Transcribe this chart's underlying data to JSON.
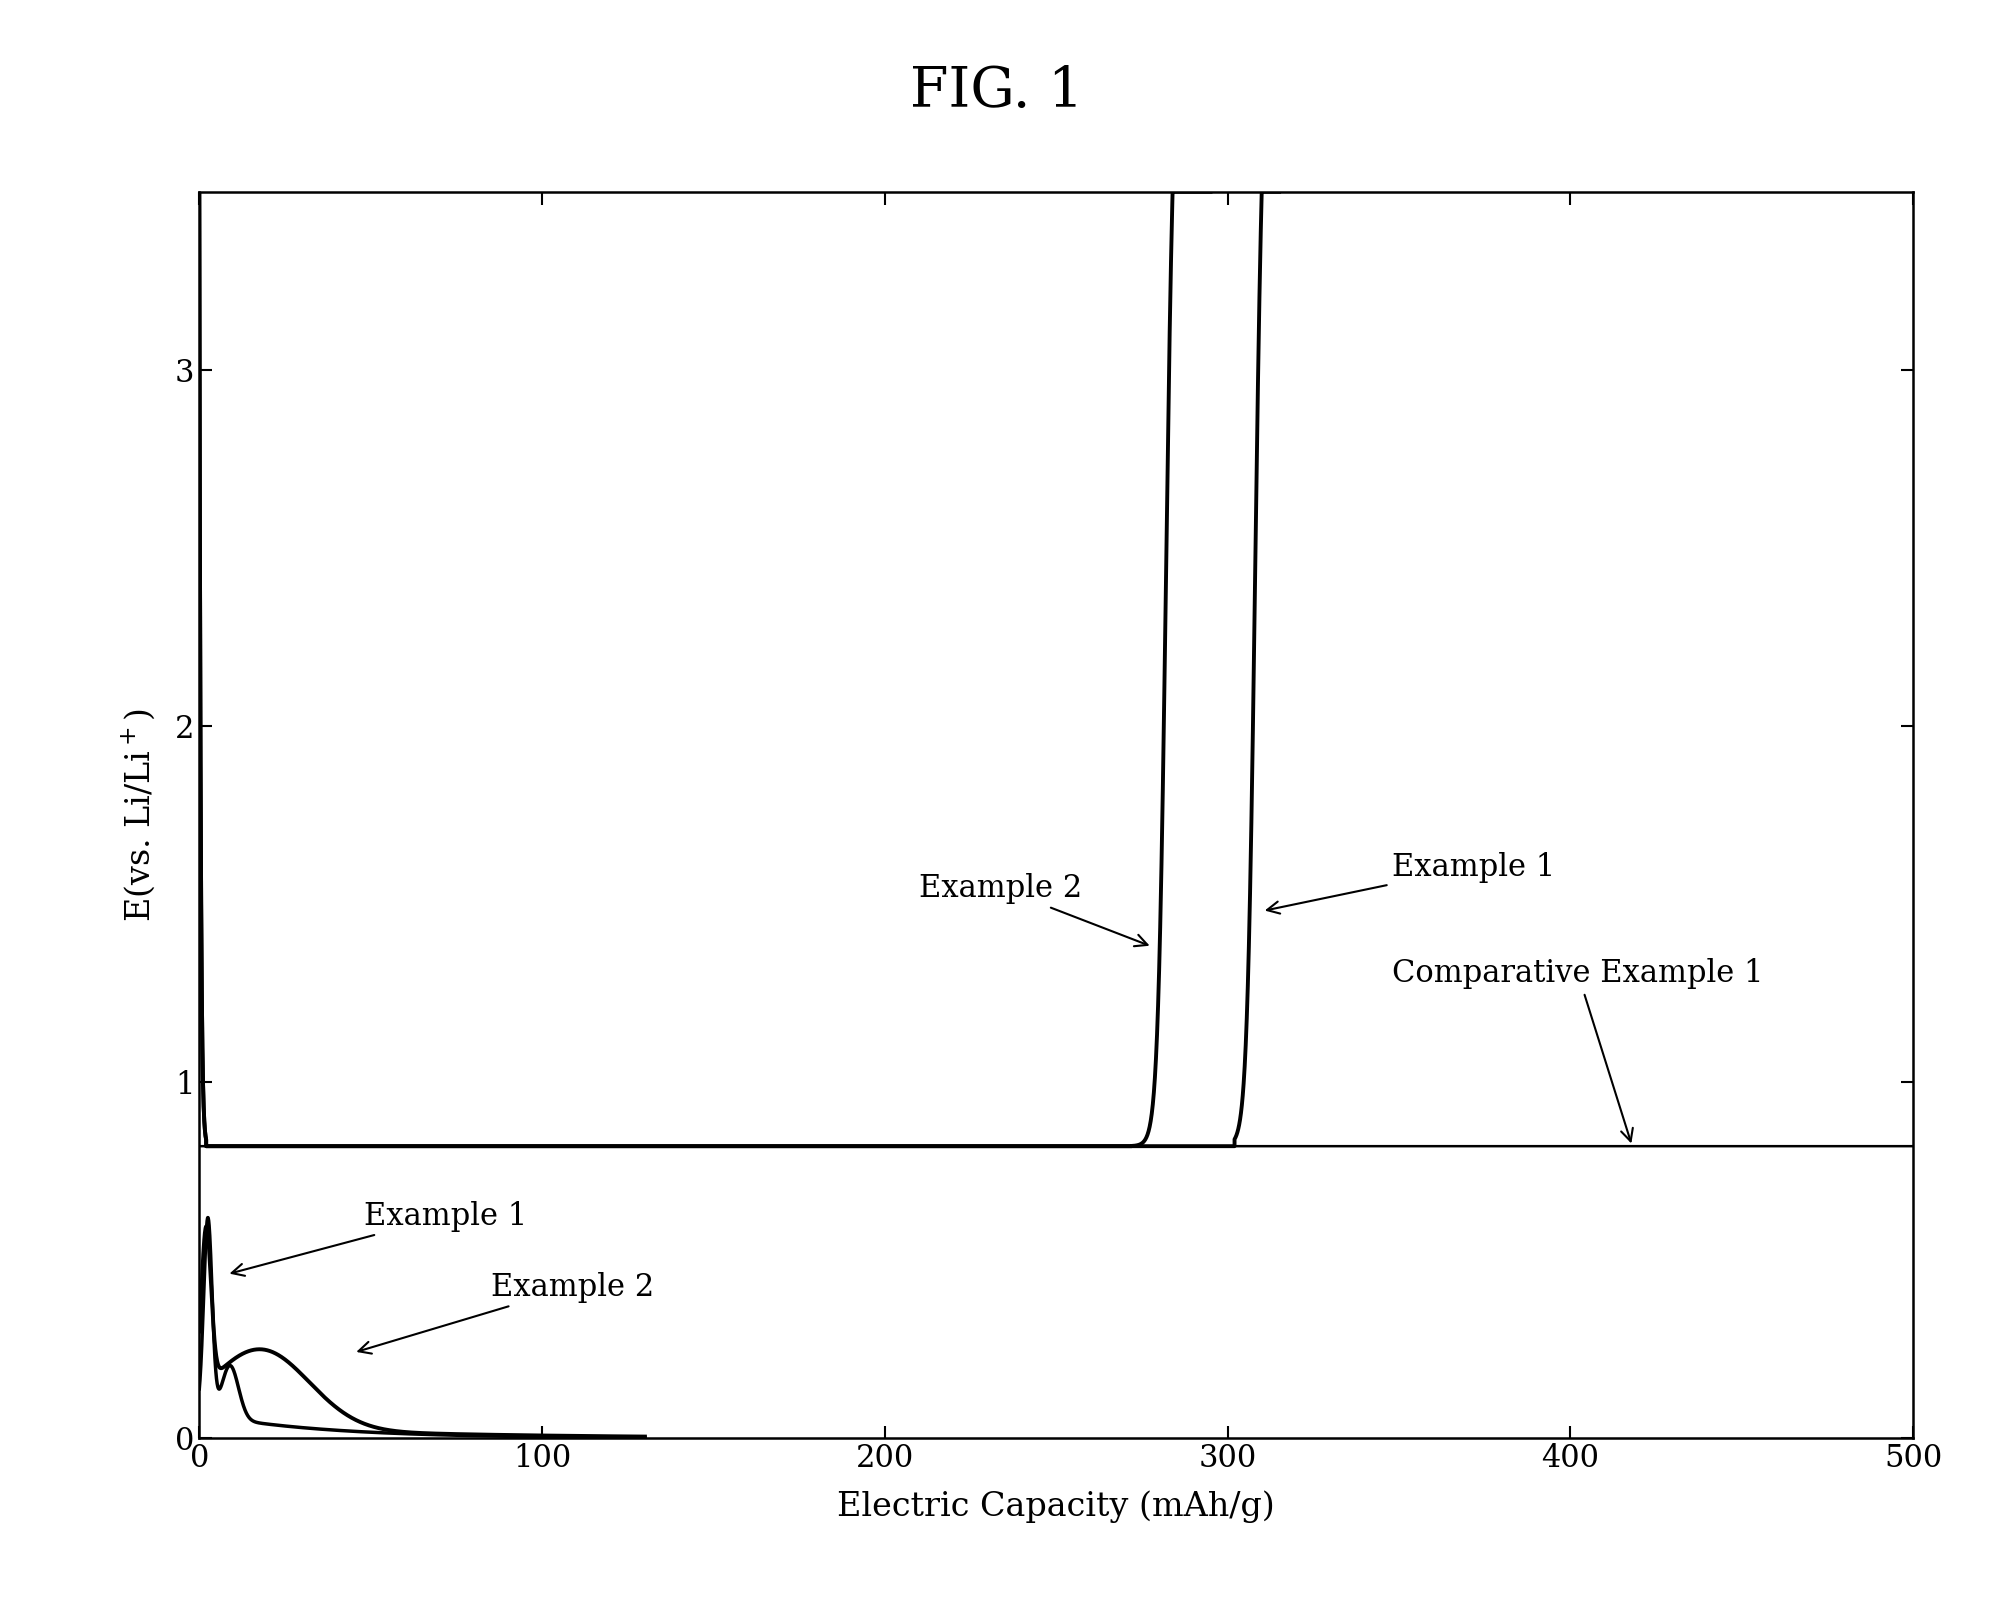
{
  "title": "FIG. 1",
  "xlabel": "Electric Capacity (mAh/g)",
  "xlim": [
    0,
    500
  ],
  "ylim": [
    0,
    3.5
  ],
  "xticks": [
    0,
    100,
    200,
    300,
    400,
    500
  ],
  "yticks": [
    0,
    1,
    2,
    3
  ],
  "background": "#ffffff",
  "line_color": "#000000",
  "title_fontsize": 40,
  "axis_label_fontsize": 24,
  "tick_fontsize": 22,
  "annotation_fontsize": 22,
  "lw_thin": 1.8,
  "lw_thick": 2.8
}
